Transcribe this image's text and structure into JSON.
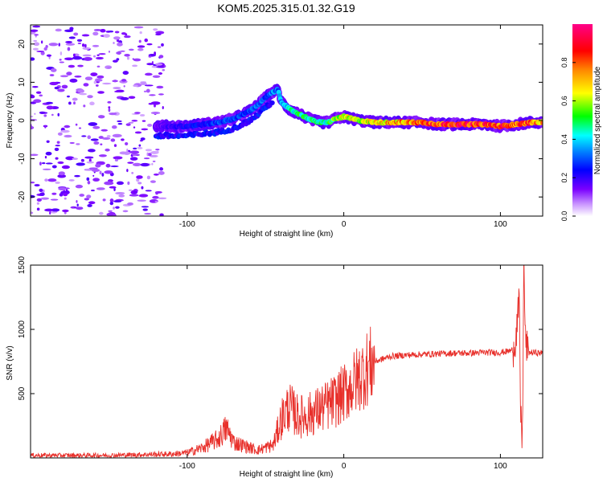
{
  "chart_data": [
    {
      "type": "heatmap",
      "title": "KOM5.2025.315.01.32.G19",
      "xlabel": "Height of straight line (km)",
      "ylabel": "Frequency (Hz)",
      "xlim": [
        -200,
        127
      ],
      "ylim": [
        -25,
        25
      ],
      "xticks": [
        -100,
        0,
        100
      ],
      "xtick_labels": [
        "-100",
        "0",
        "100"
      ],
      "yticks": [
        -20,
        -10,
        0,
        10,
        20
      ],
      "ytick_labels": [
        "-20",
        "-10",
        "0",
        "10",
        "20"
      ],
      "colorbar": {
        "label": "Normalized spectral amplitude",
        "range": [
          0,
          1
        ],
        "ticks": [
          0,
          0.2,
          0.4,
          0.6,
          0.8
        ],
        "tick_labels": [
          "0.0",
          "0.2",
          "0.4",
          "0.6",
          "0.8"
        ]
      },
      "ridge": {
        "x": [
          -120,
          -110,
          -100,
          -90,
          -80,
          -70,
          -60,
          -55,
          -50,
          -45,
          -42,
          -40,
          -35,
          -30,
          -25,
          -20,
          -15,
          -10,
          -5,
          0,
          5,
          10,
          20,
          30,
          40,
          50,
          60,
          70,
          80,
          90,
          100,
          110,
          120,
          127
        ],
        "y": [
          -1.5,
          -1.5,
          -1.5,
          -1.0,
          -0.5,
          0.5,
          2.5,
          4.0,
          6.0,
          7.5,
          8.0,
          5.0,
          3.0,
          2.0,
          1.0,
          0.0,
          -0.5,
          -0.5,
          0.5,
          1.0,
          0.5,
          0.0,
          -0.5,
          -0.5,
          -0.5,
          -0.5,
          -1.0,
          -1.0,
          -1.0,
          -1.0,
          -1.5,
          -1.0,
          -0.5,
          -0.5
        ],
        "amplitude": [
          0.15,
          0.2,
          0.25,
          0.25,
          0.3,
          0.3,
          0.3,
          0.35,
          0.3,
          0.35,
          0.35,
          0.4,
          0.45,
          0.5,
          0.5,
          0.5,
          0.5,
          0.5,
          0.6,
          0.7,
          0.7,
          0.6,
          0.7,
          0.75,
          0.8,
          0.85,
          0.9,
          0.95,
          0.95,
          0.9,
          0.9,
          0.85,
          0.85,
          0.8
        ]
      },
      "noise_region_x": [
        -200,
        -115
      ]
    },
    {
      "type": "line",
      "xlabel": "Height of straight line (km)",
      "ylabel": "SNR (v/v)",
      "xlim": [
        -200,
        127
      ],
      "ylim": [
        0,
        1500
      ],
      "xticks": [
        -100,
        0,
        100
      ],
      "xtick_labels": [
        "-100",
        "0",
        "100"
      ],
      "yticks": [
        500,
        1000,
        1500
      ],
      "ytick_labels": [
        "500",
        "1000",
        "1500"
      ],
      "color": "#e8302b",
      "series": [
        {
          "name": "SNR",
          "x": [
            -200,
            -150,
            -110,
            -100,
            -90,
            -80,
            -75,
            -70,
            -65,
            -60,
            -55,
            -50,
            -45,
            -40,
            -35,
            -30,
            -25,
            -20,
            -15,
            -10,
            -5,
            0,
            5,
            10,
            15,
            20,
            30,
            40,
            50,
            60,
            70,
            80,
            90,
            100,
            105,
            108,
            110,
            112,
            113,
            114,
            115,
            116,
            118,
            120,
            127
          ],
          "y": [
            20,
            20,
            30,
            40,
            80,
            150,
            230,
            120,
            100,
            80,
            60,
            80,
            100,
            300,
            400,
            330,
            320,
            350,
            380,
            410,
            450,
            500,
            560,
            630,
            700,
            750,
            790,
            800,
            805,
            810,
            815,
            815,
            820,
            820,
            830,
            840,
            950,
            1200,
            300,
            150,
            1500,
            900,
            820,
            820,
            815
          ]
        }
      ]
    }
  ]
}
